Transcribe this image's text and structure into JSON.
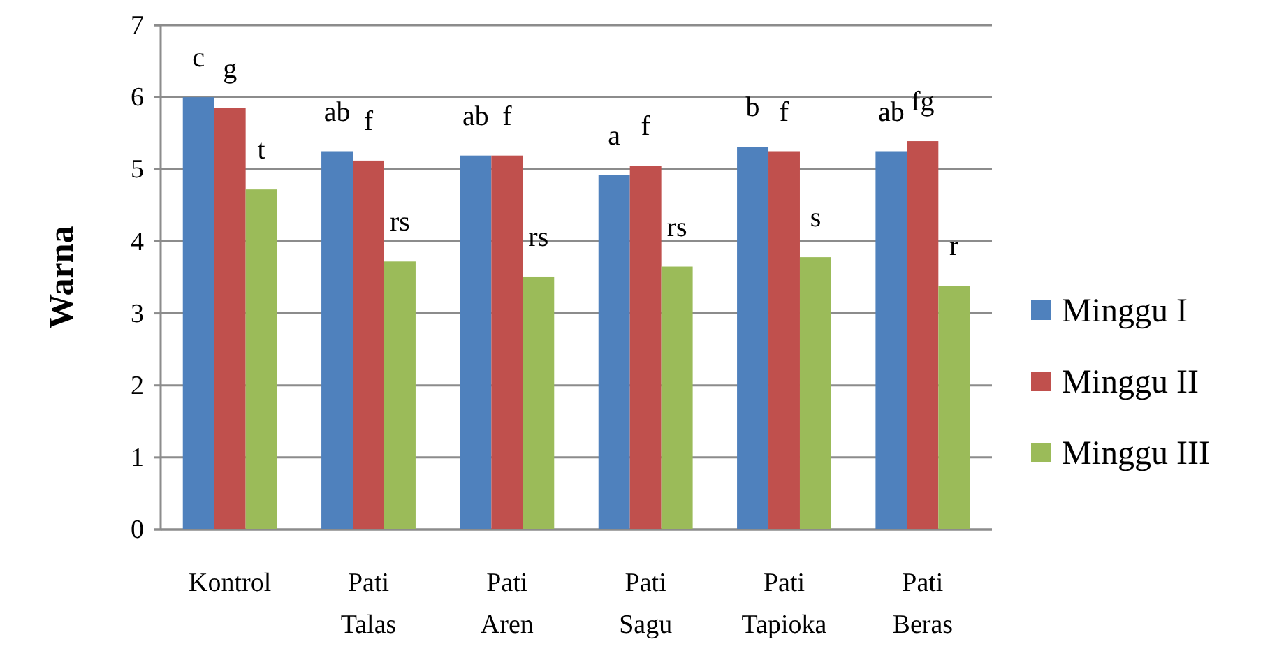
{
  "chart_data": {
    "type": "bar",
    "ylabel": "Warna",
    "categories": [
      "Kontrol",
      "Pati Talas",
      "Pati Aren",
      "Pati Sagu",
      "Pati Tapioka",
      "Pati Beras"
    ],
    "series": [
      {
        "name": "Minggu I",
        "color": "#4f81bd",
        "values": [
          6.0,
          5.25,
          5.19,
          4.92,
          5.31,
          5.25
        ],
        "value_labels": [
          "c",
          "ab",
          "ab",
          "a",
          "b",
          "ab"
        ]
      },
      {
        "name": "Minggu II",
        "color": "#c0504d",
        "values": [
          5.85,
          5.12,
          5.19,
          5.05,
          5.25,
          5.39
        ],
        "value_labels": [
          "g",
          "f",
          "f",
          "f",
          "f",
          "fg"
        ]
      },
      {
        "name": "Minggu III",
        "color": "#9bbb59",
        "values": [
          4.72,
          3.72,
          3.51,
          3.65,
          3.78,
          3.38
        ],
        "value_labels": [
          "t",
          "rs",
          "rs",
          "rs",
          "s",
          "r"
        ]
      }
    ],
    "ylim": [
      0,
      7
    ],
    "yticks": [
      0,
      1,
      2,
      3,
      4,
      5,
      6,
      7
    ],
    "grid": "y",
    "legend": "right"
  }
}
